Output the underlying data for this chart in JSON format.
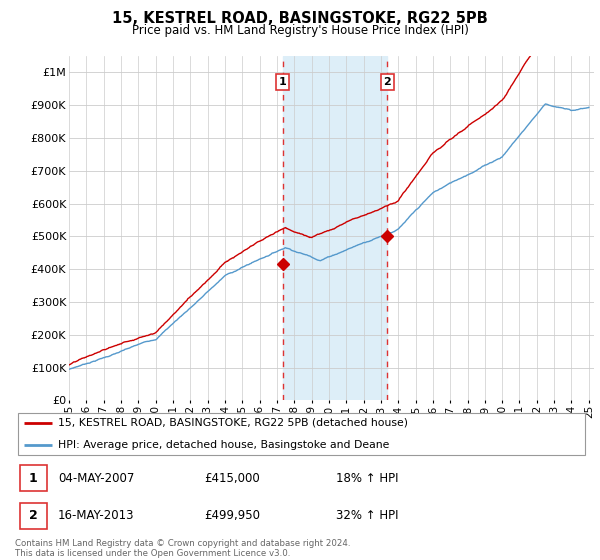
{
  "title": "15, KESTREL ROAD, BASINGSTOKE, RG22 5PB",
  "subtitle": "Price paid vs. HM Land Registry's House Price Index (HPI)",
  "ylim": [
    0,
    1050000
  ],
  "yticks": [
    0,
    100000,
    200000,
    300000,
    400000,
    500000,
    600000,
    700000,
    800000,
    900000,
    1000000
  ],
  "ytick_labels": [
    "£0",
    "£100K",
    "£200K",
    "£300K",
    "£400K",
    "£500K",
    "£600K",
    "£700K",
    "£800K",
    "£900K",
    "£1M"
  ],
  "background_color": "#ffffff",
  "plot_background": "#ffffff",
  "grid_color": "#cccccc",
  "sale1_year": 2007.34,
  "sale1_price": 415000,
  "sale2_year": 2013.37,
  "sale2_price": 499950,
  "sale1_info": "04-MAY-2007",
  "sale1_amount": "£415,000",
  "sale1_hpi": "18% ↑ HPI",
  "sale2_info": "16-MAY-2013",
  "sale2_amount": "£499,950",
  "sale2_hpi": "32% ↑ HPI",
  "legend_line1": "15, KESTREL ROAD, BASINGSTOKE, RG22 5PB (detached house)",
  "legend_line2": "HPI: Average price, detached house, Basingstoke and Deane",
  "footer": "Contains HM Land Registry data © Crown copyright and database right 2024.\nThis data is licensed under the Open Government Licence v3.0.",
  "line_color_red": "#cc0000",
  "line_color_blue": "#5599cc",
  "shade_color": "#ddeef8",
  "vline_color": "#dd3333",
  "marker_color": "#cc0000"
}
